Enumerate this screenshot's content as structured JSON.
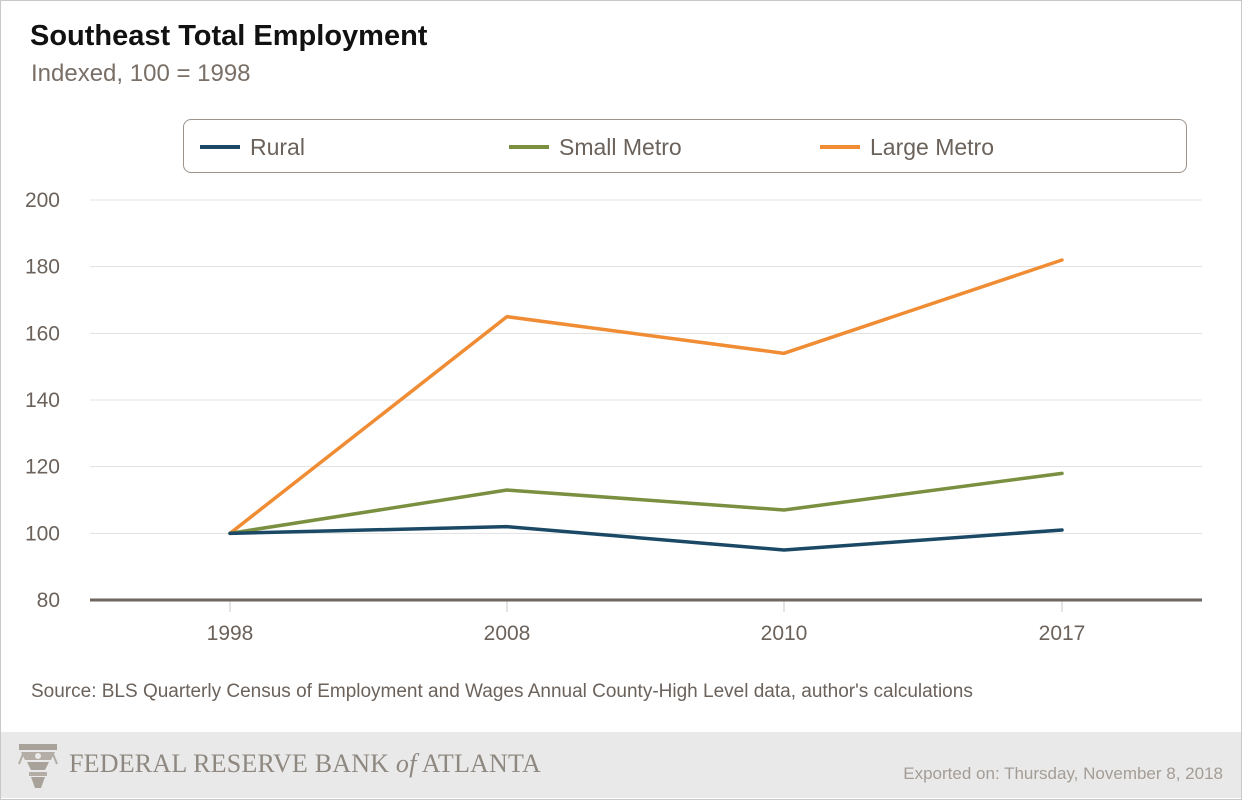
{
  "header": {
    "title": "Southeast Total Employment",
    "subtitle": "Indexed, 100 = 1998"
  },
  "chart_data": {
    "type": "line",
    "title": "Southeast Total Employment",
    "subtitle": "Indexed, 100 = 1998",
    "categories": [
      "1998",
      "2008",
      "2010",
      "2017"
    ],
    "series": [
      {
        "name": "Rural",
        "color": "#1b4965",
        "values": [
          100,
          102,
          95,
          101
        ]
      },
      {
        "name": "Small Metro",
        "color": "#7a9040",
        "values": [
          100,
          113,
          107,
          118
        ]
      },
      {
        "name": "Large Metro",
        "color": "#ef8c34",
        "values": [
          100,
          165,
          154,
          182
        ]
      }
    ],
    "ylim": [
      80,
      200
    ],
    "yticks": [
      80,
      100,
      120,
      140,
      160,
      180,
      200
    ],
    "xlabel": "",
    "ylabel": "",
    "grid": true,
    "legend": "top"
  },
  "source": "Source: BLS Quarterly Census of Employment and Wages Annual County-High Level data, author's calculations",
  "footer": {
    "bank_name_pre": "FEDERAL RESERVE BANK ",
    "bank_name_of": "of",
    "bank_name_post": " ATLANTA",
    "logo_icon": "fed-eagle-logo-icon",
    "exported": "Exported on: Thursday, November 8, 2018"
  }
}
